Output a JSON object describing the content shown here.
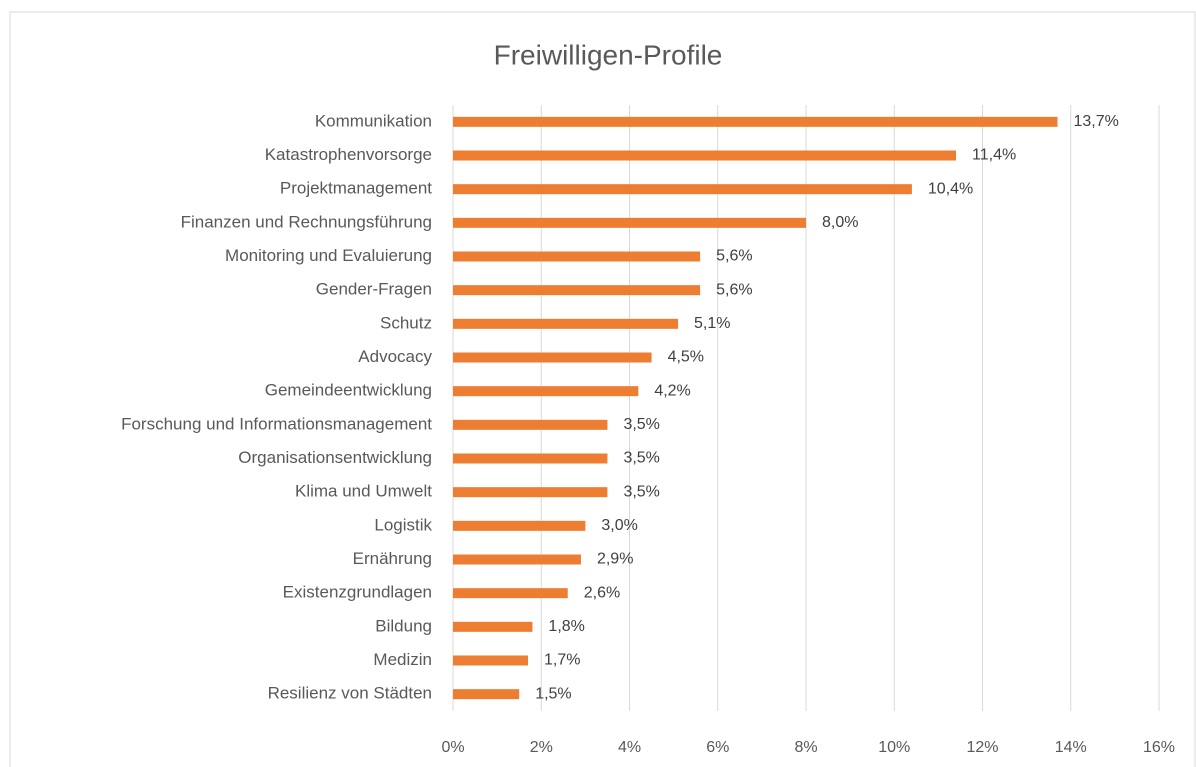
{
  "chart_data": {
    "type": "hbar",
    "title": "Freiwilligen-Profile",
    "categories": [
      "Kommunikation",
      "Katastrophenvorsorge",
      "Projektmanagement",
      "Finanzen und Rechnungsführung",
      "Monitoring und Evaluierung",
      "Gender-Fragen",
      "Schutz",
      "Advocacy",
      "Gemeindeentwicklung",
      "Forschung und Informationsmanagement",
      "Organisationsentwicklung",
      "Klima und Umwelt",
      "Logistik",
      "Ernährung",
      "Existenzgrundlagen",
      "Bildung",
      "Medizin",
      "Resilienz von Städten"
    ],
    "values": [
      13.7,
      11.4,
      10.4,
      8.0,
      5.6,
      5.6,
      5.1,
      4.5,
      4.2,
      3.5,
      3.5,
      3.5,
      3.0,
      2.9,
      2.6,
      1.8,
      1.7,
      1.5
    ],
    "value_labels": [
      "13,7%",
      "11,4%",
      "10,4%",
      "8,0%",
      "5,6%",
      "5,6%",
      "5,1%",
      "4,5%",
      "4,2%",
      "3,5%",
      "3,5%",
      "3,5%",
      "3,0%",
      "2,9%",
      "2,6%",
      "1,8%",
      "1,7%",
      "1,5%"
    ],
    "color": "#ed7d31",
    "xlim": [
      0,
      16
    ],
    "xticks": [
      {
        "value": 0,
        "label": "0%"
      },
      {
        "value": 2,
        "label": "2%"
      },
      {
        "value": 4,
        "label": "4%"
      },
      {
        "value": 6,
        "label": "6%"
      },
      {
        "value": 8,
        "label": "8%"
      },
      {
        "value": 10,
        "label": "10%"
      },
      {
        "value": 12,
        "label": "12%"
      },
      {
        "value": 14,
        "label": "14%"
      },
      {
        "value": 16,
        "label": "16%"
      }
    ],
    "grid": true
  }
}
